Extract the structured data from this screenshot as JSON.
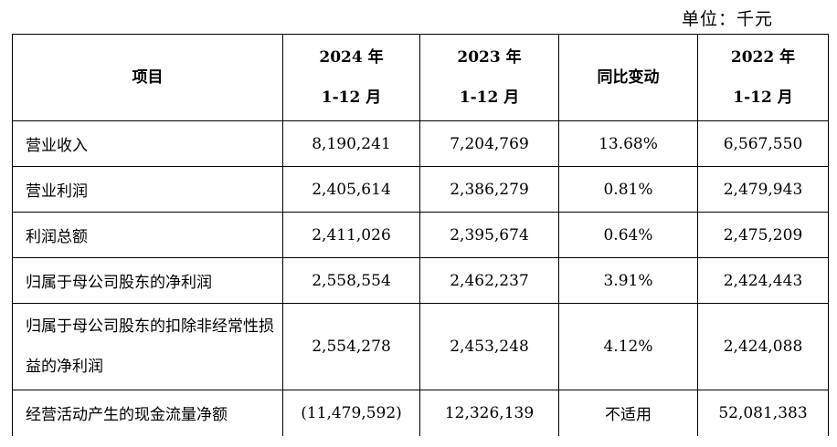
{
  "unit_label": "单位：千元",
  "table": {
    "headers": {
      "item": "项目",
      "y2024": {
        "year": "2024 年",
        "period": "1-12 月"
      },
      "y2023": {
        "year": "2023 年",
        "period": "1-12 月"
      },
      "change": "同比变动",
      "y2022": {
        "year": "2022 年",
        "period": "1-12 月"
      }
    },
    "rows": [
      {
        "label": "营业收入",
        "v2024": "8,190,241",
        "v2023": "7,204,769",
        "change": "13.68%",
        "v2022": "6,567,550"
      },
      {
        "label": "营业利润",
        "v2024": "2,405,614",
        "v2023": "2,386,279",
        "change": "0.81%",
        "v2022": "2,479,943"
      },
      {
        "label": "利润总额",
        "v2024": "2,411,026",
        "v2023": "2,395,674",
        "change": "0.64%",
        "v2022": "2,475,209"
      },
      {
        "label": "归属于母公司股东的净利润",
        "v2024": "2,558,554",
        "v2023": "2,462,237",
        "change": "3.91%",
        "v2022": "2,424,443"
      },
      {
        "label": "归属于母公司股东的扣除非经常性损益的净利润",
        "v2024": "2,554,278",
        "v2023": "2,453,248",
        "change": "4.12%",
        "v2022": "2,424,088"
      },
      {
        "label": "经营活动产生的现金流量净额",
        "v2024": "(11,479,592)",
        "v2023": "12,326,139",
        "change": "不适用",
        "v2022": "52,081,383"
      }
    ]
  }
}
